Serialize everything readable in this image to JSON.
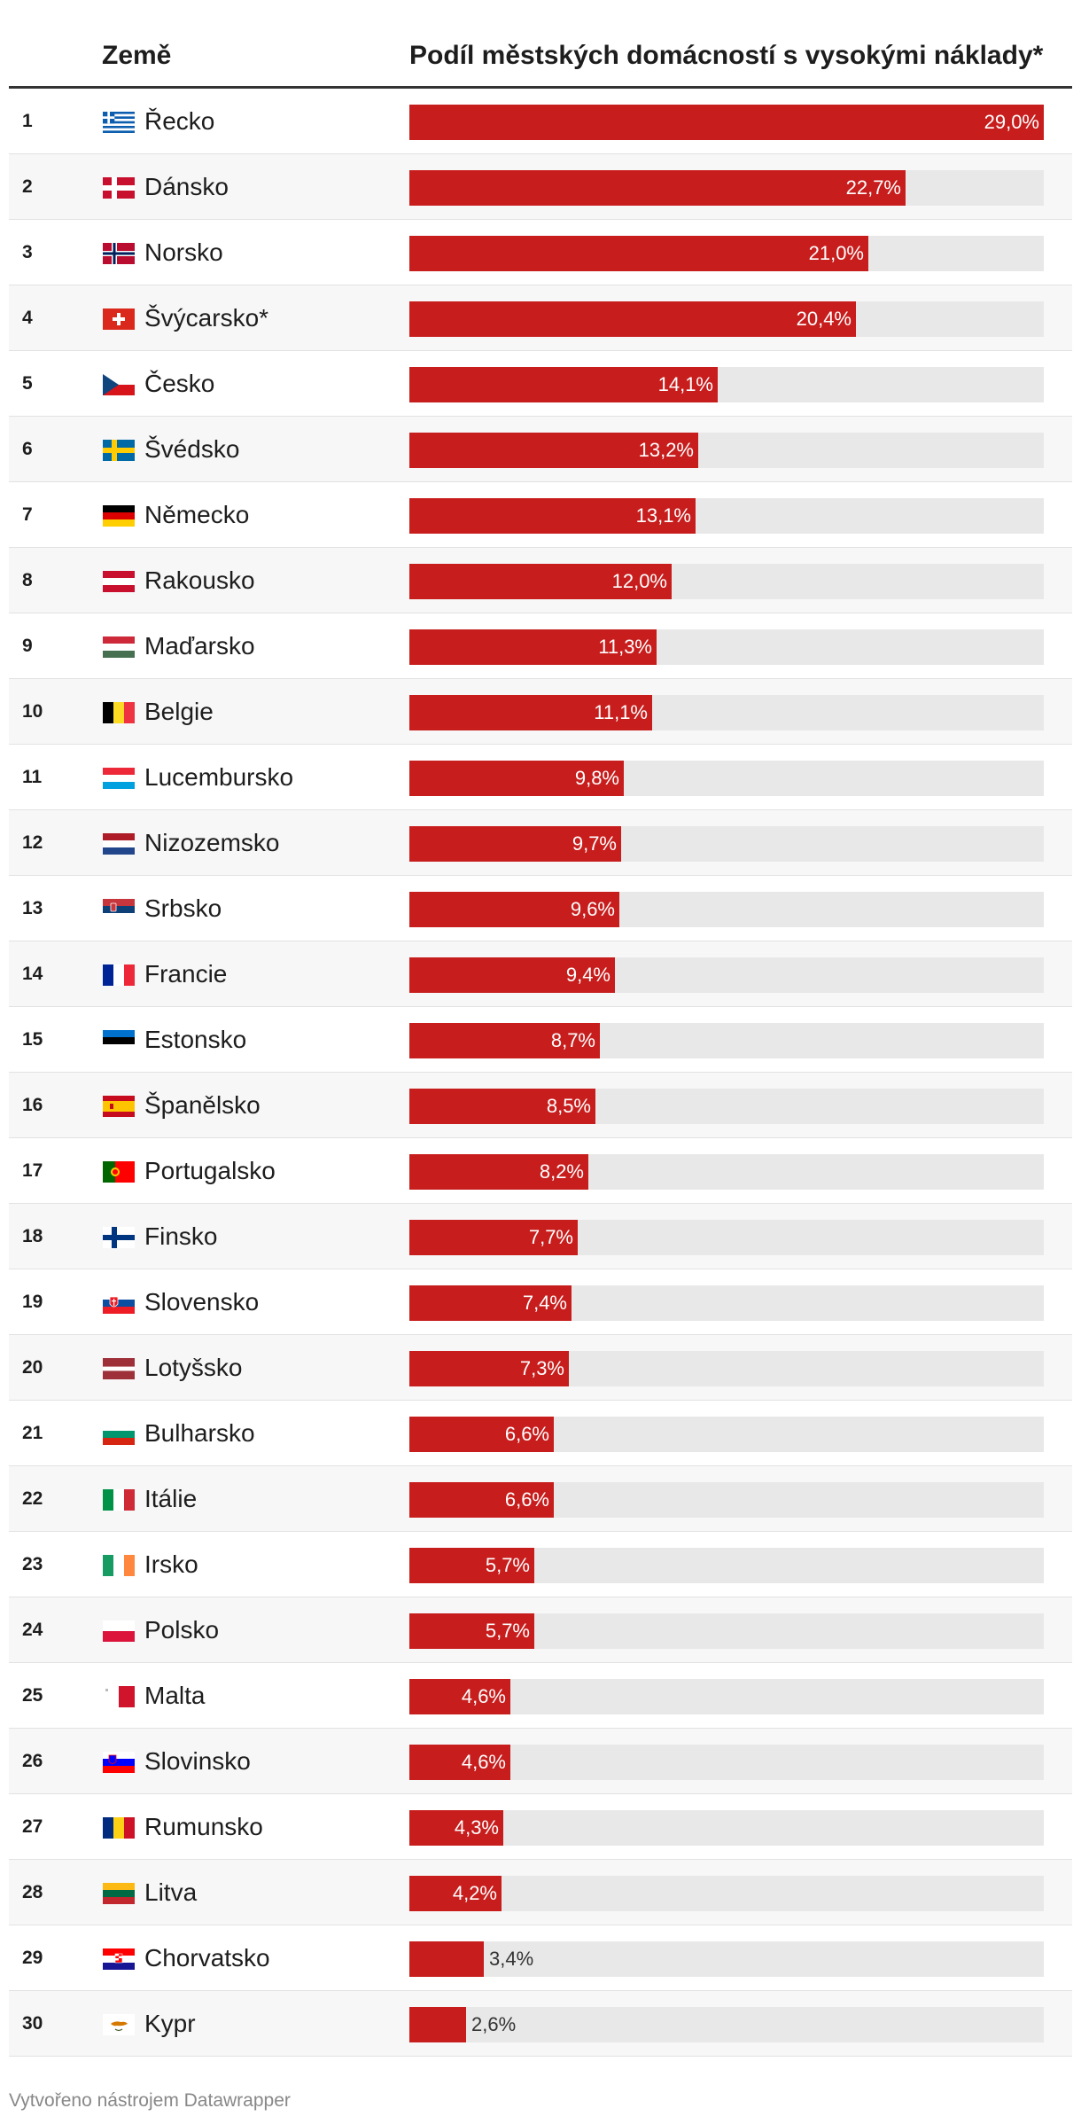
{
  "header": {
    "country_col": "Země",
    "value_col": "Podíl městských domácností s vysokými náklady*"
  },
  "footer": {
    "credit": "Vytvořeno nástrojem Datawrapper"
  },
  "chart_data": {
    "type": "bar",
    "orientation": "horizontal",
    "xlim": [
      0,
      29.0
    ],
    "bar_color": "#c71e1d",
    "track_color": "#e8e8e8",
    "rows": [
      {
        "rank": "1",
        "country": "Řecko",
        "flag": "gr",
        "value": 29.0,
        "label": "29,0%"
      },
      {
        "rank": "2",
        "country": "Dánsko",
        "flag": "dk",
        "value": 22.7,
        "label": "22,7%"
      },
      {
        "rank": "3",
        "country": "Norsko",
        "flag": "no",
        "value": 21.0,
        "label": "21,0%"
      },
      {
        "rank": "4",
        "country": "Švýcarsko*",
        "flag": "ch",
        "value": 20.4,
        "label": "20,4%"
      },
      {
        "rank": "5",
        "country": "Česko",
        "flag": "cz",
        "value": 14.1,
        "label": "14,1%"
      },
      {
        "rank": "6",
        "country": "Švédsko",
        "flag": "se",
        "value": 13.2,
        "label": "13,2%"
      },
      {
        "rank": "7",
        "country": "Německo",
        "flag": "de",
        "value": 13.1,
        "label": "13,1%"
      },
      {
        "rank": "8",
        "country": "Rakousko",
        "flag": "at",
        "value": 12.0,
        "label": "12,0%"
      },
      {
        "rank": "9",
        "country": "Maďarsko",
        "flag": "hu",
        "value": 11.3,
        "label": "11,3%"
      },
      {
        "rank": "10",
        "country": "Belgie",
        "flag": "be",
        "value": 11.1,
        "label": "11,1%"
      },
      {
        "rank": "11",
        "country": "Lucembursko",
        "flag": "lu",
        "value": 9.8,
        "label": "9,8%"
      },
      {
        "rank": "12",
        "country": "Nizozemsko",
        "flag": "nl",
        "value": 9.7,
        "label": "9,7%"
      },
      {
        "rank": "13",
        "country": "Srbsko",
        "flag": "rs",
        "value": 9.6,
        "label": "9,6%"
      },
      {
        "rank": "14",
        "country": "Francie",
        "flag": "fr",
        "value": 9.4,
        "label": "9,4%"
      },
      {
        "rank": "15",
        "country": "Estonsko",
        "flag": "ee",
        "value": 8.7,
        "label": "8,7%"
      },
      {
        "rank": "16",
        "country": "Španělsko",
        "flag": "es",
        "value": 8.5,
        "label": "8,5%"
      },
      {
        "rank": "17",
        "country": "Portugalsko",
        "flag": "pt",
        "value": 8.2,
        "label": "8,2%"
      },
      {
        "rank": "18",
        "country": "Finsko",
        "flag": "fi",
        "value": 7.7,
        "label": "7,7%"
      },
      {
        "rank": "19",
        "country": "Slovensko",
        "flag": "sk",
        "value": 7.4,
        "label": "7,4%"
      },
      {
        "rank": "20",
        "country": "Lotyšsko",
        "flag": "lv",
        "value": 7.3,
        "label": "7,3%"
      },
      {
        "rank": "21",
        "country": "Bulharsko",
        "flag": "bg",
        "value": 6.6,
        "label": "6,6%"
      },
      {
        "rank": "22",
        "country": "Itálie",
        "flag": "it",
        "value": 6.6,
        "label": "6,6%"
      },
      {
        "rank": "23",
        "country": "Irsko",
        "flag": "ie",
        "value": 5.7,
        "label": "5,7%"
      },
      {
        "rank": "24",
        "country": "Polsko",
        "flag": "pl",
        "value": 5.7,
        "label": "5,7%"
      },
      {
        "rank": "25",
        "country": "Malta",
        "flag": "mt",
        "value": 4.6,
        "label": "4,6%"
      },
      {
        "rank": "26",
        "country": "Slovinsko",
        "flag": "si",
        "value": 4.6,
        "label": "4,6%"
      },
      {
        "rank": "27",
        "country": "Rumunsko",
        "flag": "ro",
        "value": 4.3,
        "label": "4,3%"
      },
      {
        "rank": "28",
        "country": "Litva",
        "flag": "lt",
        "value": 4.2,
        "label": "4,2%"
      },
      {
        "rank": "29",
        "country": "Chorvatsko",
        "flag": "hr",
        "value": 3.4,
        "label": "3,4%"
      },
      {
        "rank": "30",
        "country": "Kypr",
        "flag": "cy",
        "value": 2.6,
        "label": "2,6%"
      }
    ]
  }
}
